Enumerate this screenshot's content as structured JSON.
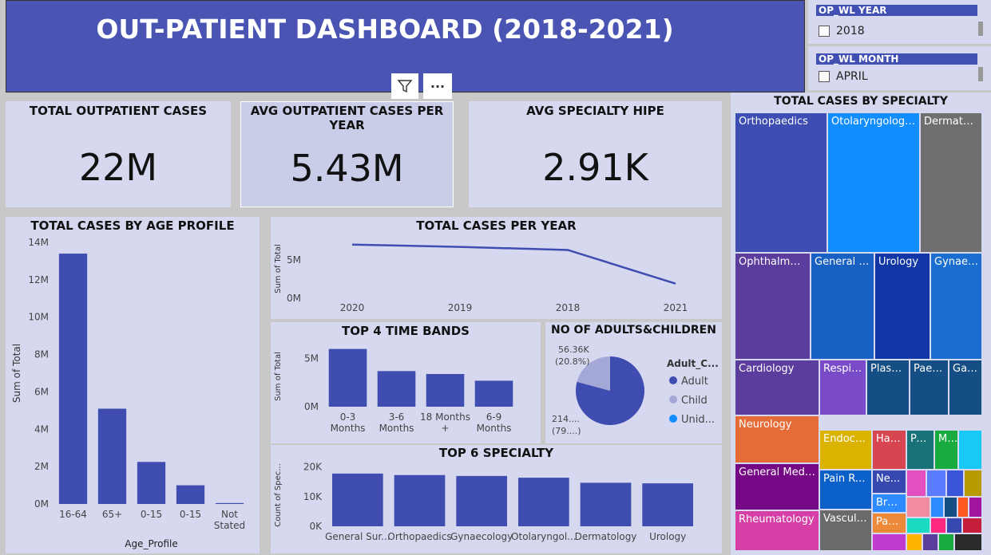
{
  "header": {
    "title": "OUT-PATIENT DASHBOARD (2018-2021)"
  },
  "slicers": [
    {
      "title": "OP_WL YEAR",
      "item": "2018"
    },
    {
      "title": "OP_WL MONTH",
      "item": "APRIL"
    }
  ],
  "toolbar": {
    "more_label": "···"
  },
  "kpis": [
    {
      "label": "TOTAL OUTPATIENT CASES",
      "value": "22M"
    },
    {
      "label": "AVG OUTPATIENT CASES PER YEAR",
      "value": "5.43M"
    },
    {
      "label": "AVG SPECIALTY HIPE",
      "value": "2.91K"
    }
  ],
  "colors": {
    "bar": "#3f4cb0",
    "header": "#4a55b3",
    "panel": "#d6d8ef"
  },
  "chart_data": [
    {
      "type": "bar",
      "title": "TOTAL CASES BY AGE PROFILE",
      "xlabel": "Age_Profile",
      "ylabel": "Sum of Total",
      "categories": [
        "16-64",
        "65+",
        "0-15",
        "0-15",
        "Not Stated"
      ],
      "values": [
        13400000,
        5100000,
        2250000,
        1000000,
        50000
      ],
      "ylim": [
        0,
        14000000
      ],
      "yticks": [
        "0M",
        "2M",
        "4M",
        "6M",
        "8M",
        "10M",
        "12M",
        "14M"
      ]
    },
    {
      "type": "line",
      "title": "TOTAL CASES PER YEAR",
      "xlabel": "",
      "ylabel": "Sum of Total",
      "categories": [
        "2020",
        "2019",
        "2018",
        "2021"
      ],
      "values": [
        7000000,
        6700000,
        6300000,
        1900000
      ],
      "ylim": [
        0,
        7700000
      ],
      "yticks": [
        "0M",
        "5M"
      ]
    },
    {
      "type": "bar",
      "title": "TOP 4 TIME BANDS",
      "xlabel": "",
      "ylabel": "Sum of Total",
      "categories": [
        "0-3 Months",
        "3-6 Months",
        "18 Months +",
        "6-9 Months"
      ],
      "values": [
        6000000,
        3700000,
        3400000,
        2700000
      ],
      "ylim": [
        0,
        6300000
      ],
      "yticks": [
        "0M",
        "5M"
      ]
    },
    {
      "type": "pie",
      "title": "NO OF ADULTS&CHILDREN",
      "legend_title": "Adult_C...",
      "labels": [
        "Adult",
        "Child",
        "Unid..."
      ],
      "values": [
        79.2,
        20.8,
        0
      ],
      "colors": [
        "#3f4cb0",
        "#a3a8d6",
        "#118dff"
      ],
      "label_child": "56.36K",
      "label_child_pct": "(20.8%)",
      "label_adult": "214....",
      "label_adult_pct": "(79....)"
    },
    {
      "type": "bar",
      "title": "TOP 6 SPECIALTY",
      "xlabel": "",
      "ylabel": "Count of Spec...",
      "categories": [
        "General Sur...",
        "Orthopaedics",
        "Gynaecology",
        "Otolaryngol...",
        "Dermatology",
        "Urology"
      ],
      "values": [
        17800,
        17300,
        17000,
        16400,
        14700,
        14500
      ],
      "ylim": [
        0,
        21000
      ],
      "yticks": [
        "0K",
        "10K",
        "20K"
      ]
    },
    {
      "type": "treemap",
      "title": "TOTAL CASES BY SPECIALTY",
      "labels": [
        "Orthopaedics",
        "Otolaryngology (...",
        "Dermatol...",
        "Ophthalmolo...",
        "General S...",
        "Urology",
        "Gynaec...",
        "Cardiology",
        "Respir...",
        "Plasti...",
        "Paed...",
        "Gas...",
        "Neurology",
        "Endocri...",
        "Hae...",
        "Pa...",
        "M...",
        "General Medici...",
        "Pain Reli...",
        "Ne...",
        "Bre...",
        "Rheumatology",
        "Vascular...",
        "Pae..."
      ]
    }
  ]
}
